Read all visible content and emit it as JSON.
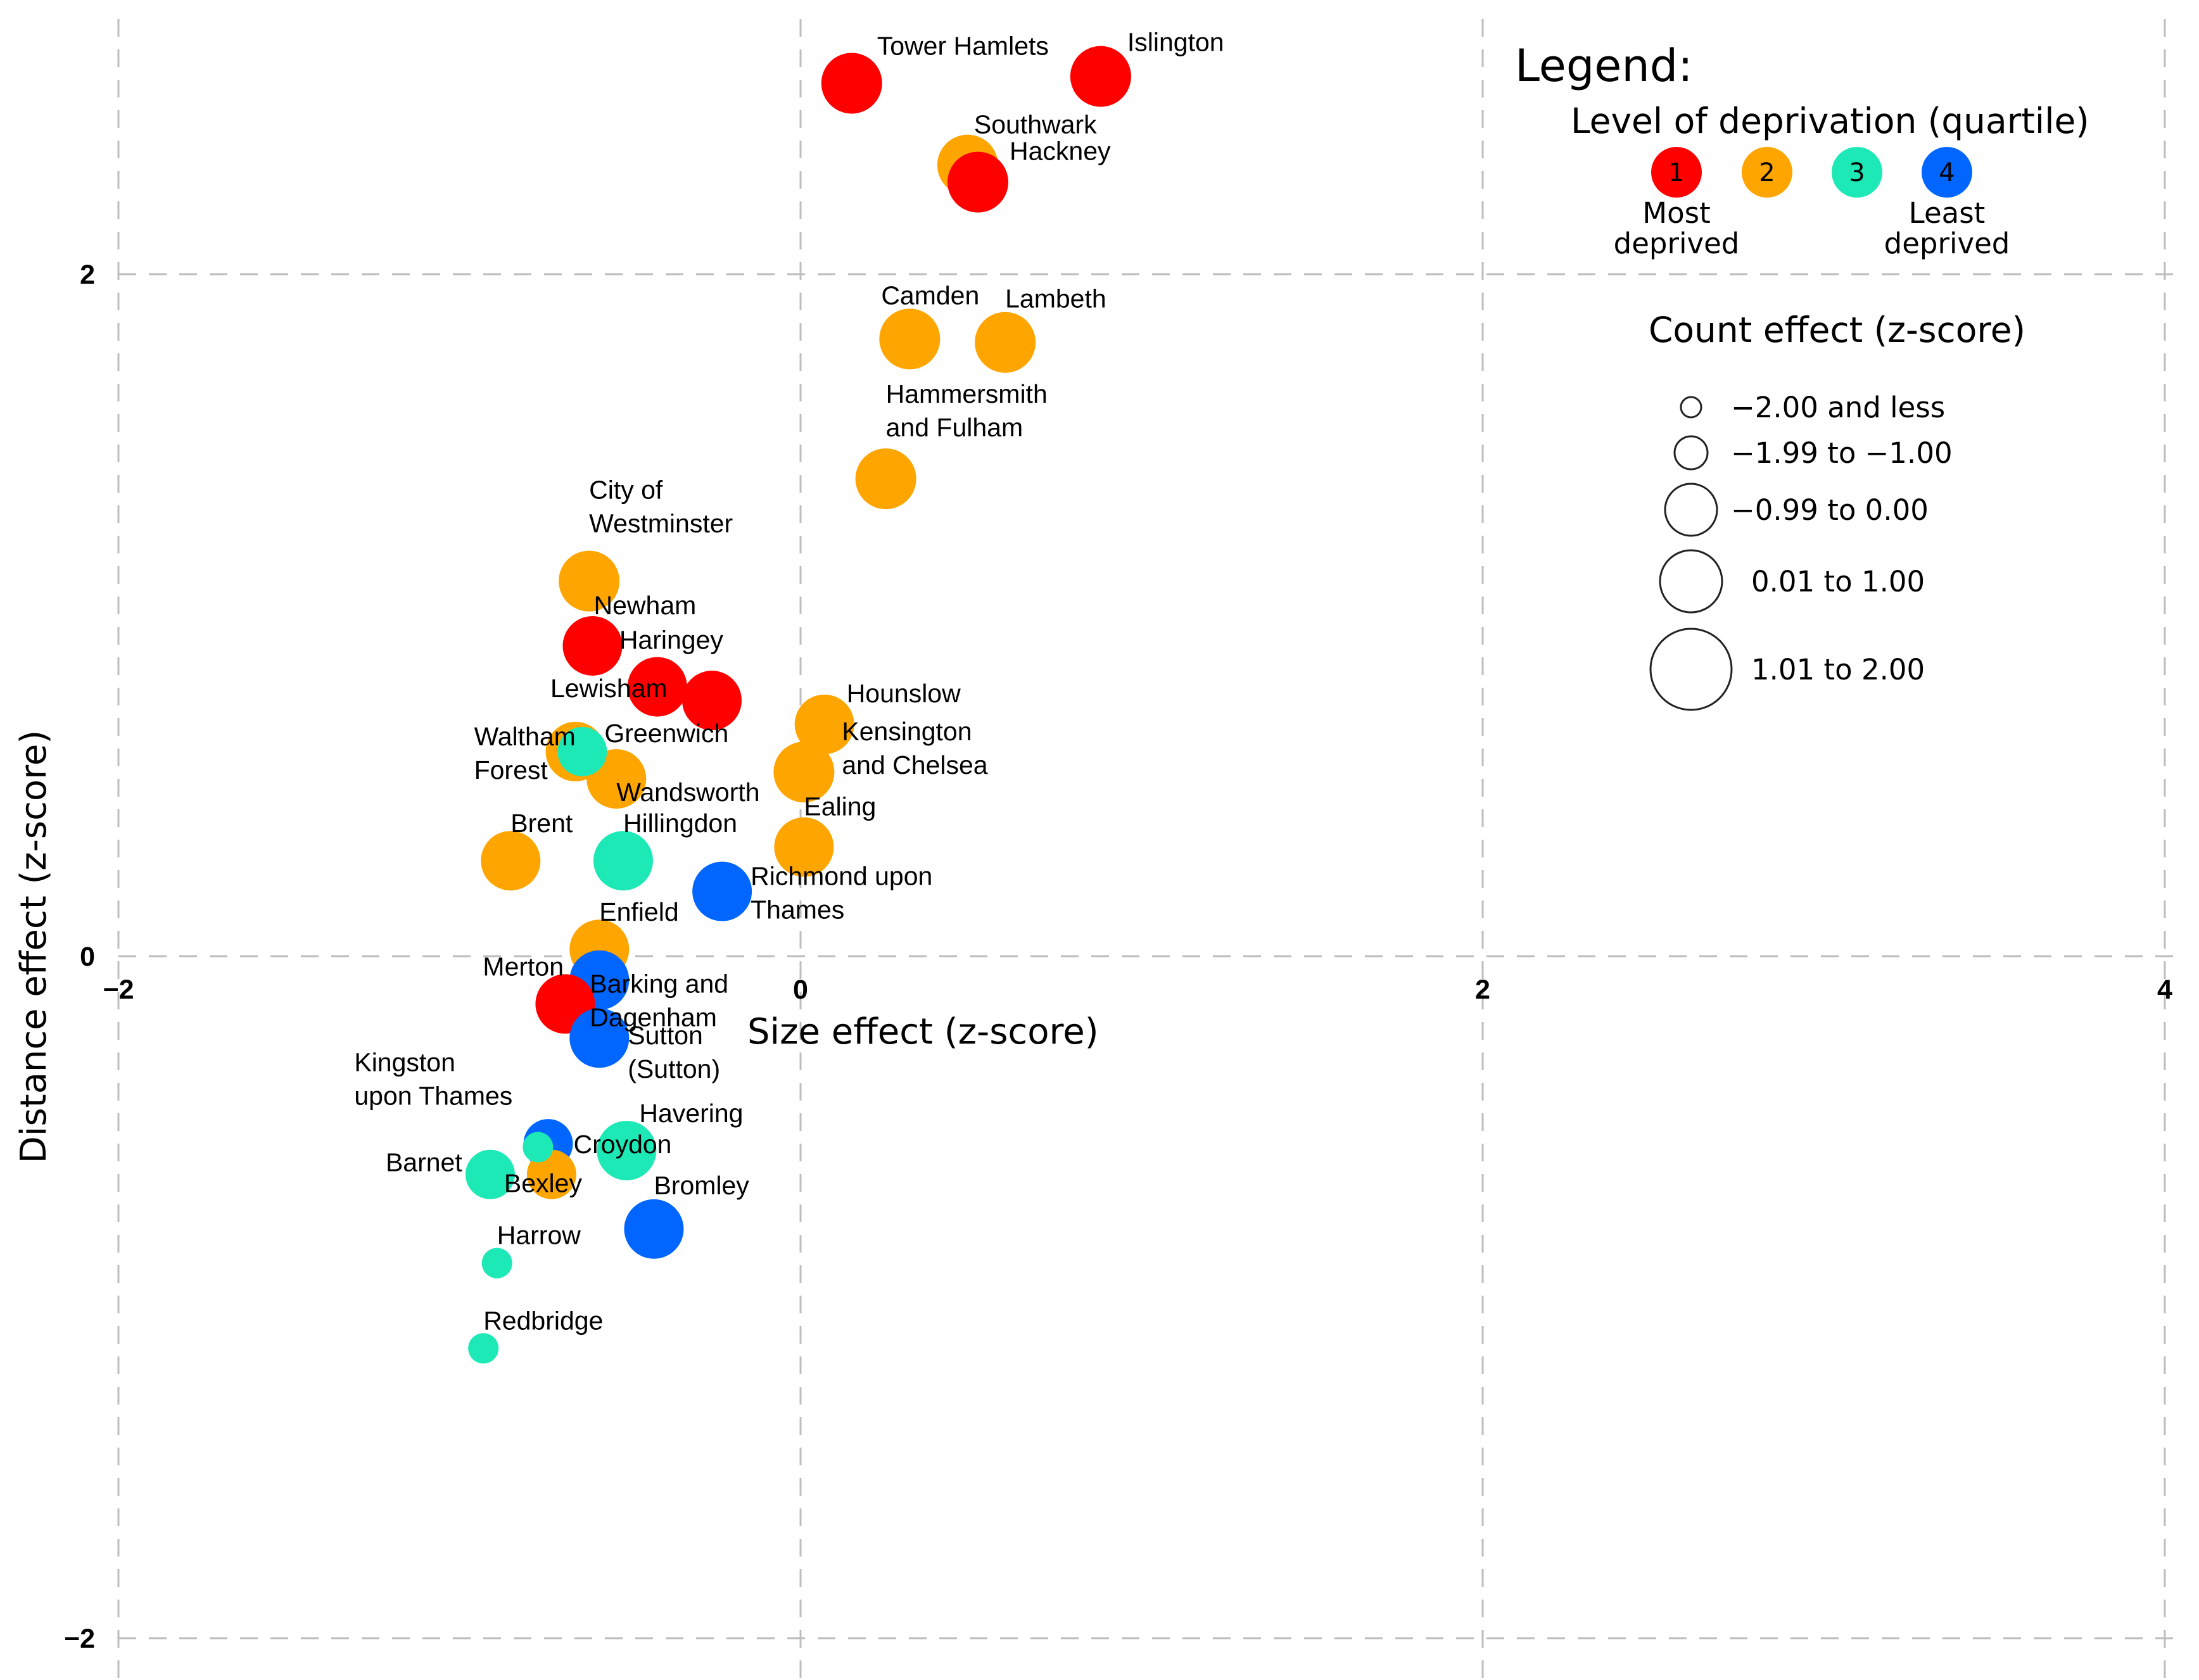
{
  "chart_data": {
    "type": "scatter",
    "xlabel": "Size effect (z-score)",
    "ylabel": "Distance effect (z-score)",
    "xlim": [
      -2,
      4
    ],
    "ylim": [
      -2,
      2
    ],
    "x_ticks": [
      {
        "v": -2,
        "t": "−2"
      },
      {
        "v": 0,
        "t": "0"
      },
      {
        "v": 2,
        "t": "2"
      },
      {
        "v": 4,
        "t": "4"
      }
    ],
    "y_ticks": [
      {
        "v": 2,
        "t": "2"
      },
      {
        "v": 0,
        "t": "0"
      },
      {
        "v": -2,
        "t": "−2"
      }
    ],
    "grid": true,
    "colors": {
      "1": "#ff0000",
      "2": "#ffa500",
      "3": "#1de9b6",
      "4": "#0066ff"
    },
    "points": [
      {
        "name": [
          "Tower Hamlets"
        ],
        "x": 0.15,
        "y": 2.56,
        "q": 1,
        "c": 4
      },
      {
        "name": [
          "Islington"
        ],
        "x": 0.88,
        "y": 2.58,
        "q": 1,
        "c": 4
      },
      {
        "name": [
          "Southwark"
        ],
        "x": 0.49,
        "y": 2.32,
        "q": 2,
        "c": 4
      },
      {
        "name": [
          "Hackney"
        ],
        "x": 0.52,
        "y": 2.27,
        "q": 1,
        "c": 4
      },
      {
        "name": [
          "Camden"
        ],
        "x": 0.32,
        "y": 1.81,
        "q": 2,
        "c": 4
      },
      {
        "name": [
          "Lambeth"
        ],
        "x": 0.6,
        "y": 1.8,
        "q": 2,
        "c": 4
      },
      {
        "name": [
          "Hammersmith",
          "and Fulham"
        ],
        "x": 0.25,
        "y": 1.4,
        "q": 2,
        "c": 4
      },
      {
        "name": [
          "City of",
          "Westminster"
        ],
        "x": -0.62,
        "y": 1.1,
        "q": 2,
        "c": 4
      },
      {
        "name": [
          "Newham"
        ],
        "x": -0.61,
        "y": 0.91,
        "q": 1,
        "c": 3
      },
      {
        "name": [
          "Haringey"
        ],
        "x": -0.42,
        "y": 0.79,
        "q": 1,
        "c": 3
      },
      {
        "name": [
          "Lewisham"
        ],
        "x": -0.26,
        "y": 0.75,
        "q": 1,
        "c": 3
      },
      {
        "name": [
          "Hounslow"
        ],
        "x": 0.07,
        "y": 0.68,
        "q": 2,
        "c": 3
      },
      {
        "name": [
          "Kensington",
          "and Chelsea"
        ],
        "x": 0.01,
        "y": 0.54,
        "q": 2,
        "c": 4
      },
      {
        "name": [
          "Greenwich"
        ],
        "x": -0.64,
        "y": 0.6,
        "q": 3,
        "c": 2
      },
      {
        "name": [
          "Waltham",
          "Forest"
        ],
        "x": -0.66,
        "y": 0.6,
        "q": 2,
        "c": 3
      },
      {
        "name": [
          "Wandsworth"
        ],
        "x": -0.54,
        "y": 0.52,
        "q": 2,
        "c": 3
      },
      {
        "name": [
          "Ealing"
        ],
        "x": 0.01,
        "y": 0.32,
        "q": 2,
        "c": 3
      },
      {
        "name": [
          "Brent"
        ],
        "x": -0.85,
        "y": 0.28,
        "q": 2,
        "c": 3
      },
      {
        "name": [
          "Hillingdon"
        ],
        "x": -0.52,
        "y": 0.28,
        "q": 3,
        "c": 3
      },
      {
        "name": [
          "Richmond upon",
          "Thames"
        ],
        "x": -0.23,
        "y": 0.19,
        "q": 4,
        "c": 3
      },
      {
        "name": [
          "Enfield"
        ],
        "x": -0.59,
        "y": 0.02,
        "q": 2,
        "c": 3
      },
      {
        "name": [
          "Barking and",
          "Dagenham"
        ],
        "x": -0.59,
        "y": -0.07,
        "q": 4,
        "c": 3
      },
      {
        "name": [
          "Merton"
        ],
        "x": -0.69,
        "y": -0.14,
        "q": 1,
        "c": 3
      },
      {
        "name": [
          "Sutton",
          "(Sutton)"
        ],
        "x": -0.59,
        "y": -0.24,
        "q": 4,
        "c": 3
      },
      {
        "name": [
          "Kingston",
          "upon Thames"
        ],
        "x": -0.77,
        "y": -0.56,
        "q": 3,
        "c": 1
      },
      {
        "name": [
          "Havering"
        ],
        "x": -0.51,
        "y": -0.57,
        "q": 3,
        "c": 3
      },
      {
        "name": [
          "Croydon"
        ],
        "x": -0.74,
        "y": -0.55,
        "q": 4,
        "c": 2
      },
      {
        "name": [
          "Barnet"
        ],
        "x": -0.91,
        "y": -0.64,
        "q": 3,
        "c": 2
      },
      {
        "name": [
          "Bexley"
        ],
        "x": -0.73,
        "y": -0.64,
        "q": 2,
        "c": 2
      },
      {
        "name": [
          "Bromley"
        ],
        "x": -0.43,
        "y": -0.8,
        "q": 4,
        "c": 3
      },
      {
        "name": [
          "Harrow"
        ],
        "x": -0.89,
        "y": -0.9,
        "q": 3,
        "c": 1
      },
      {
        "name": [
          "Redbridge"
        ],
        "x": -0.93,
        "y": -1.15,
        "q": 3,
        "c": 1
      }
    ],
    "legend": {
      "title": "Legend:",
      "deprivation_title": "Level of deprivation (quartile)",
      "quartiles": [
        {
          "num": "1",
          "q": 1,
          "caption": [
            "Most",
            "deprived"
          ]
        },
        {
          "num": "2",
          "q": 2,
          "caption": []
        },
        {
          "num": "3",
          "q": 3,
          "caption": []
        },
        {
          "num": "4",
          "q": 4,
          "caption": [
            "Least",
            "deprived"
          ]
        }
      ],
      "count_title": "Count effect (z-score)",
      "count_classes": [
        {
          "c": 0,
          "label": "−2.00 and less"
        },
        {
          "c": 1,
          "label": "−1.99 to −1.00"
        },
        {
          "c": 2,
          "label": "−0.99 to 0.00"
        },
        {
          "c": 3,
          "label": "0.01 to 1.00"
        },
        {
          "c": 4,
          "label": "1.01 to 2.00"
        }
      ]
    }
  }
}
